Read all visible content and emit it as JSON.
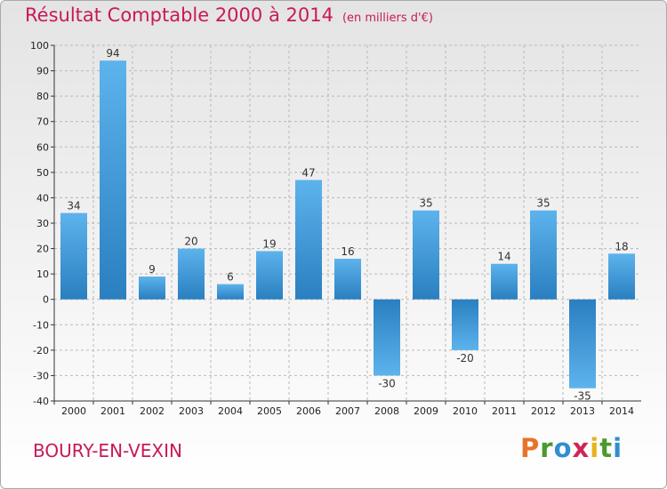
{
  "header": {
    "title": "Résultat Comptable 2000 à 2014",
    "subtitle": "(en milliers d'€)"
  },
  "footer": {
    "commune": "BOURY-EN-VEXIN",
    "logo_letters": [
      "P",
      "r",
      "o",
      "x",
      "i",
      "t",
      "i"
    ],
    "logo_colors": [
      "#e8732a",
      "#4a9a2e",
      "#2f8fd0",
      "#d0245a",
      "#e8b21e",
      "#4a9a2e",
      "#2f8fd0"
    ]
  },
  "chart_data": {
    "type": "bar",
    "title": "Résultat Comptable 2000 à 2014",
    "subtitle": "(en milliers d'€)",
    "categories": [
      "2000",
      "2001",
      "2002",
      "2003",
      "2004",
      "2005",
      "2006",
      "2007",
      "2008",
      "2009",
      "2010",
      "2011",
      "2012",
      "2013",
      "2014"
    ],
    "values": [
      34,
      94,
      9,
      20,
      6,
      19,
      47,
      16,
      -30,
      35,
      -20,
      14,
      35,
      -35,
      18
    ],
    "value_labels": [
      "34",
      "94",
      "9",
      "20",
      "6",
      "19",
      "47",
      "16",
      "-30",
      "35",
      "-20",
      "14",
      "35",
      "-35",
      "18"
    ],
    "yticks": [
      "100",
      "90",
      "80",
      "70",
      "60",
      "50",
      "40",
      "30",
      "20",
      "10",
      "0",
      "-10",
      "-20",
      "-30",
      "-40"
    ],
    "ytick_values": [
      100,
      90,
      80,
      70,
      60,
      50,
      40,
      30,
      20,
      10,
      0,
      -10,
      -20,
      -30,
      -40
    ],
    "ylim": [
      -40,
      100
    ],
    "xlabel": "",
    "ylabel": "",
    "grid": true,
    "bar_color": "#3a94d6"
  }
}
